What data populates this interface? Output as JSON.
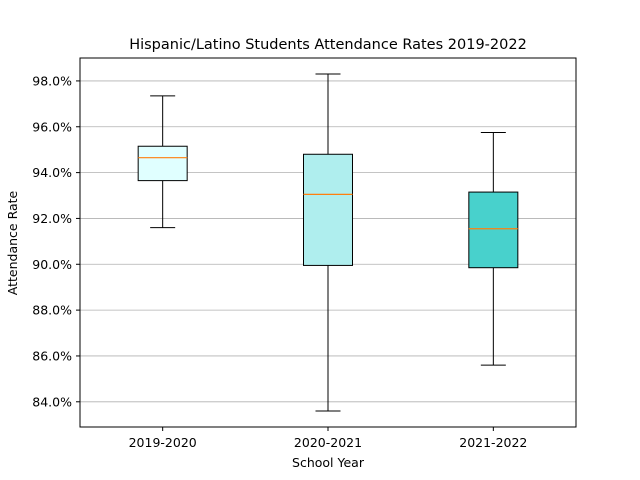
{
  "chart_data": {
    "type": "box",
    "title": "Hispanic/Latino Students Attendance Rates 2019-2022",
    "xlabel": "School Year",
    "ylabel": "Attendance Rate",
    "ylim": [
      82.9,
      99.0
    ],
    "yticks": [
      84.0,
      86.0,
      88.0,
      90.0,
      92.0,
      94.0,
      96.0,
      98.0
    ],
    "ytick_labels": [
      "84.0%",
      "86.0%",
      "88.0%",
      "90.0%",
      "92.0%",
      "94.0%",
      "96.0%",
      "98.0%"
    ],
    "grid": "horizontal",
    "categories": [
      "2019-2020",
      "2020-2021",
      "2021-2022"
    ],
    "boxes": [
      {
        "category": "2019-2020",
        "whisker_low": 91.6,
        "q1": 93.65,
        "median": 94.65,
        "q3": 95.15,
        "whisker_high": 97.35,
        "color": "#e0ffff"
      },
      {
        "category": "2020-2021",
        "whisker_low": 83.6,
        "q1": 89.95,
        "median": 93.05,
        "q3": 94.8,
        "whisker_high": 98.3,
        "color": "#afeeee"
      },
      {
        "category": "2021-2022",
        "whisker_low": 85.6,
        "q1": 89.85,
        "median": 91.55,
        "q3": 93.15,
        "whisker_high": 95.75,
        "color": "#48d1cc"
      }
    ],
    "median_color": "#ff7f0e",
    "grid_color": "#b0b0b0"
  }
}
